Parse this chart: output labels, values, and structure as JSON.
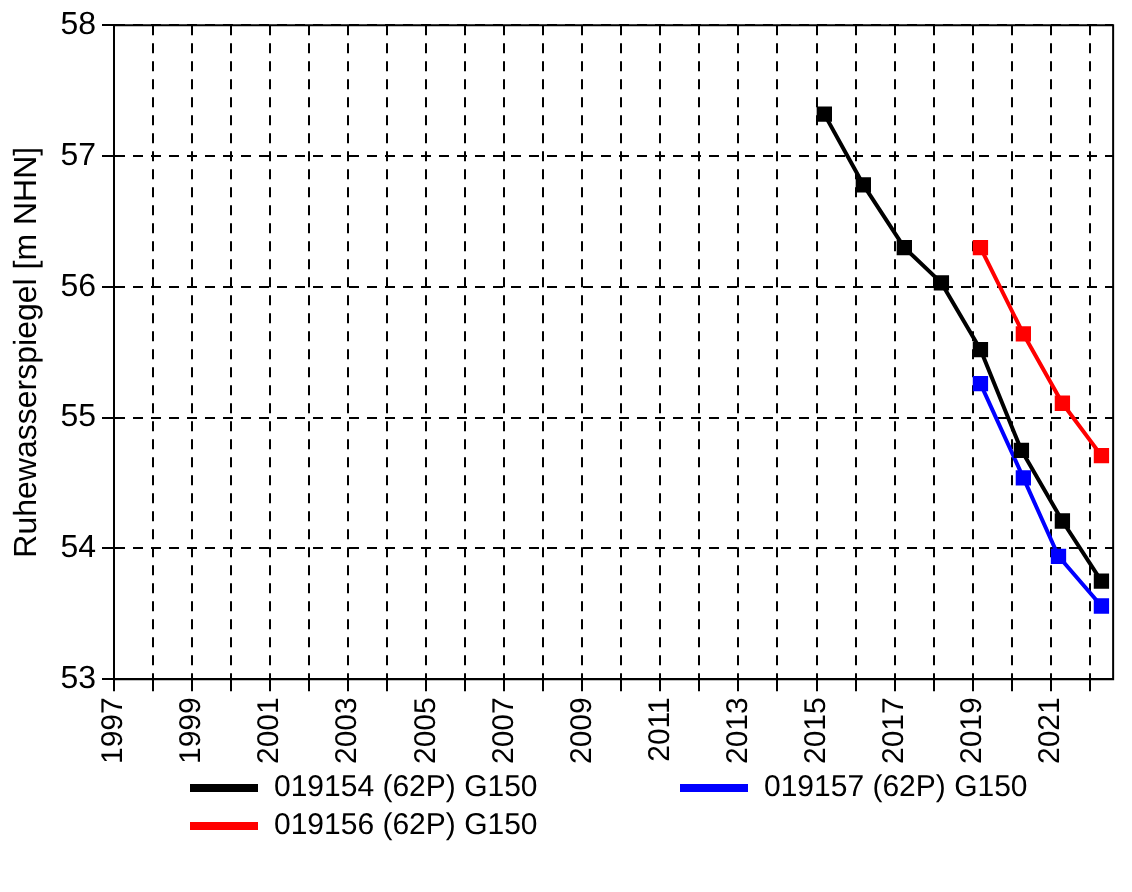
{
  "chart_data": {
    "type": "line",
    "ylabel": "Ruhewasserspiegel [m NHN]",
    "xlim": [
      1997,
      2022.6
    ],
    "xticks": [
      1997,
      {
        "value": 1998,
        "label": null
      },
      1999,
      {
        "value": 2000,
        "label": null
      },
      2001,
      {
        "value": 2002,
        "label": null
      },
      2003,
      {
        "value": 2004,
        "label": null
      },
      2005,
      {
        "value": 2006,
        "label": null
      },
      2007,
      {
        "value": 2008,
        "label": null
      },
      2009,
      {
        "value": 2010,
        "label": null
      },
      2011,
      {
        "value": 2012,
        "label": null
      },
      2013,
      {
        "value": 2014,
        "label": null
      },
      2015,
      {
        "value": 2016,
        "label": null
      },
      2017,
      {
        "value": 2018,
        "label": null
      },
      2019,
      {
        "value": 2020,
        "label": null
      },
      2021,
      {
        "value": 2022,
        "label": null
      }
    ],
    "ylim": [
      53,
      58
    ],
    "yticks": [
      53,
      54,
      55,
      56,
      57,
      58
    ],
    "grid": true,
    "legend": "bottom",
    "marker": "square",
    "line_style": "solid",
    "series": [
      {
        "name": "019154 (62P) G150",
        "color": "#000000",
        "x": [
          2015.2,
          2016.2,
          2017.25,
          2018.2,
          2019.2,
          2020.25,
          2021.3,
          2022.3
        ],
        "values": [
          57.32,
          56.78,
          56.3,
          56.03,
          55.52,
          54.75,
          54.21,
          53.75
        ]
      },
      {
        "name": "019156 (62P) G150",
        "color": "#ff0000",
        "x": [
          2019.2,
          2020.3,
          2021.3,
          2022.3
        ],
        "values": [
          56.3,
          55.64,
          55.11,
          54.71
        ]
      },
      {
        "name": "019157 (62P) G150",
        "color": "#0000ff",
        "x": [
          2019.2,
          2020.3,
          2021.2,
          2022.3
        ],
        "values": [
          55.26,
          54.54,
          53.94,
          53.56
        ]
      }
    ]
  }
}
